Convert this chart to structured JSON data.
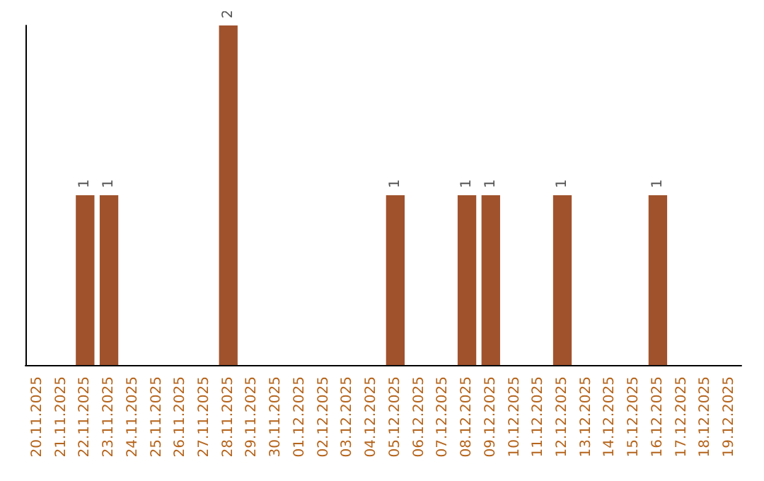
{
  "chart_data": {
    "type": "bar",
    "categories": [
      "20.11.2025",
      "21.11.2025",
      "22.11.2025",
      "23.11.2025",
      "24.11.2025",
      "25.11.2025",
      "26.11.2025",
      "27.11.2025",
      "28.11.2025",
      "29.11.2025",
      "30.11.2025",
      "01.12.2025",
      "02.12.2025",
      "03.12.2025",
      "04.12.2025",
      "05.12.2025",
      "06.12.2025",
      "07.12.2025",
      "08.12.2025",
      "09.12.2025",
      "10.12.2025",
      "11.12.2025",
      "12.12.2025",
      "13.12.2025",
      "14.12.2025",
      "15.12.2025",
      "16.12.2025",
      "17.12.2025",
      "18.12.2025",
      "19.12.2025"
    ],
    "values": [
      0,
      0,
      1,
      1,
      0,
      0,
      0,
      0,
      2,
      0,
      0,
      0,
      0,
      0,
      0,
      1,
      0,
      0,
      1,
      1,
      0,
      0,
      1,
      0,
      0,
      0,
      1,
      0,
      0,
      0
    ],
    "value_labels": [
      null,
      null,
      "1",
      "1",
      null,
      null,
      null,
      null,
      "2",
      null,
      null,
      null,
      null,
      null,
      null,
      "1",
      null,
      null,
      "1",
      "1",
      null,
      null,
      "1",
      null,
      null,
      null,
      "1",
      null,
      null,
      null
    ],
    "color": "#a0522d",
    "tick_labels": "x"
  }
}
